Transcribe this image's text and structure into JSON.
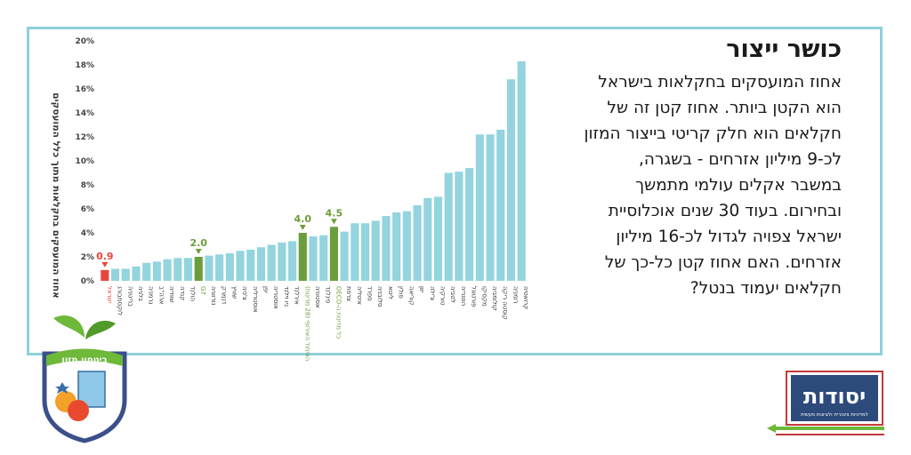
{
  "header": {
    "title": "כושר ייצור",
    "body": "אחוז המועסקים בחקלאות בישראל הוא הקטן ביותר. אחוז קטן זה של חקלאים הוא חלק קריטי בייצור המזון לכ-9 מיליון אזרחים - בשגרה, במשבר אקלים עולמי מתמשך ובחירום. בעוד 30 שנים אוכלוסיית ישראל צפויה לגדול לכ-16 מיליון אזרחים. האם אחוז קטן כל-כך של חקלאים יעמוד בנטל?"
  },
  "logos": {
    "shield_text": "ביטחון מזון",
    "yesodot_name": "יסודות",
    "yesodot_tagline": "למדיניות ציבורית ולציונות מעשית"
  },
  "chart_data": {
    "type": "bar",
    "ylabel": "אחוז המועסקים בחקלאות מתוך כלל המועסקים",
    "ylim": [
      0,
      20
    ],
    "yticks": [
      "0%",
      "2%",
      "4%",
      "6%",
      "8%",
      "10%",
      "12%",
      "14%",
      "16%",
      "18%",
      "20%"
    ],
    "grid": false,
    "categories": [
      "ישראל",
      "לוקסמבורג",
      "בריטניה",
      "בלגיה",
      "גרמניה",
      "ארה\"ב",
      "שוודיה",
      "קנדה",
      "הולנד",
      "G7",
      "נורווגיה",
      "דנמרק",
      "שוויץ",
      "צ'כיה",
      "אוסטרליה",
      "יפן",
      "אוסטריה",
      "ניו זילנד",
      "אירלנד",
      "האיחוד האירופי (28 מדינות)",
      "אסטוניה",
      "פינלנד",
      "OECD-כל מדינות ה",
      "צרפת",
      "איטליה",
      "ספרד",
      "סלובניה",
      "ליטא",
      "פולין",
      "קוריאה",
      "יוון",
      "צ'ילה",
      "טורקיה",
      "לטביה",
      "הונגריה",
      "פורטוגל",
      "מקסיקו",
      "קולומביה",
      "קוסטה ריקה",
      "רומניה",
      "קרואטיה"
    ],
    "values": [
      0.9,
      1.0,
      1.0,
      1.2,
      1.5,
      1.6,
      1.8,
      1.9,
      1.9,
      2.0,
      2.1,
      2.2,
      2.3,
      2.5,
      2.6,
      2.8,
      3.0,
      3.2,
      3.3,
      4.0,
      3.7,
      3.8,
      4.5,
      4.1,
      4.8,
      4.8,
      5.0,
      5.4,
      5.7,
      5.8,
      6.3,
      6.9,
      7.0,
      9.0,
      9.1,
      9.4,
      12.2,
      12.2,
      12.6,
      16.8,
      18.3
    ],
    "highlight": {
      "0": "#e8463c",
      "9": "#6b9e3a",
      "19": "#6b9e3a",
      "22": "#6b9e3a"
    },
    "data_labels": {
      "0": "0.9",
      "9": "2.0",
      "19": "4.0",
      "22": "4.5"
    },
    "bar_color": "#93d4de"
  }
}
